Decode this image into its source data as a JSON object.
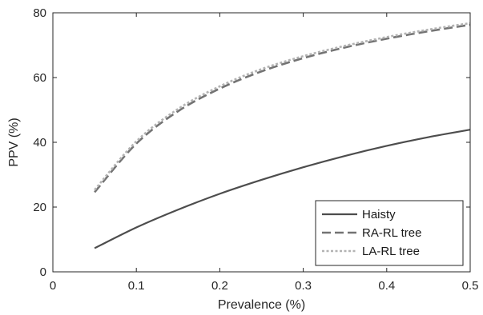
{
  "chart_data": {
    "type": "line",
    "title": "",
    "xlabel": "Prevalence (%)",
    "ylabel": "PPV (%)",
    "xlim": [
      0,
      0.5
    ],
    "ylim": [
      0,
      80
    ],
    "xticks": [
      0,
      0.1,
      0.2,
      0.3,
      0.4,
      0.5
    ],
    "xtick_labels": [
      "0",
      "0.1",
      "0.2",
      "0.3",
      "0.4",
      "0.5"
    ],
    "yticks": [
      0,
      20,
      40,
      60,
      80
    ],
    "ytick_labels": [
      "0",
      "20",
      "40",
      "60",
      "80"
    ],
    "grid": false,
    "legend_position": "bottom-right",
    "x": [
      0.05,
      0.1,
      0.15,
      0.2,
      0.25,
      0.3,
      0.35,
      0.4,
      0.45,
      0.5
    ],
    "series": [
      {
        "name": "Haisty",
        "color": "#4d4d4d",
        "style": "solid",
        "values": [
          7.3,
          13.7,
          19.2,
          24.1,
          28.4,
          32.3,
          35.8,
          38.9,
          41.6,
          43.9
        ]
      },
      {
        "name": "RA-RL tree",
        "color": "#737373",
        "style": "dashed",
        "values": [
          24.6,
          39.6,
          49.6,
          56.6,
          61.9,
          66.0,
          69.3,
          72.0,
          74.3,
          76.3
        ]
      },
      {
        "name": "LA-RL tree",
        "color": "#b3b3b3",
        "style": "dotted",
        "values": [
          25.3,
          40.3,
          50.3,
          57.3,
          62.6,
          66.6,
          69.8,
          72.5,
          74.8,
          76.8
        ]
      }
    ]
  }
}
